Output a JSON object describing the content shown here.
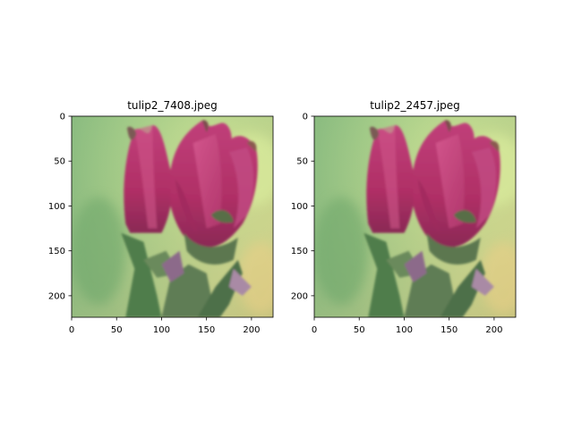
{
  "chart_data": [
    {
      "type": "image",
      "title": "tulip2_7408.jpeg",
      "image_size": [
        224,
        224
      ],
      "xlim": [
        0,
        224
      ],
      "ylim": [
        224,
        0
      ],
      "xticks": [
        0,
        50,
        100,
        150,
        200
      ],
      "yticks": [
        0,
        50,
        100,
        150,
        200
      ],
      "content": "pink tulip-like flower bud on a blurred green and yellow background"
    },
    {
      "type": "image",
      "title": "tulip2_2457.jpeg",
      "image_size": [
        224,
        224
      ],
      "xlim": [
        0,
        224
      ],
      "ylim": [
        224,
        0
      ],
      "xticks": [
        0,
        50,
        100,
        150,
        200
      ],
      "yticks": [
        0,
        50,
        100,
        150,
        200
      ],
      "content": "pink tulip-like flower bud on a blurred green and yellow background"
    }
  ]
}
